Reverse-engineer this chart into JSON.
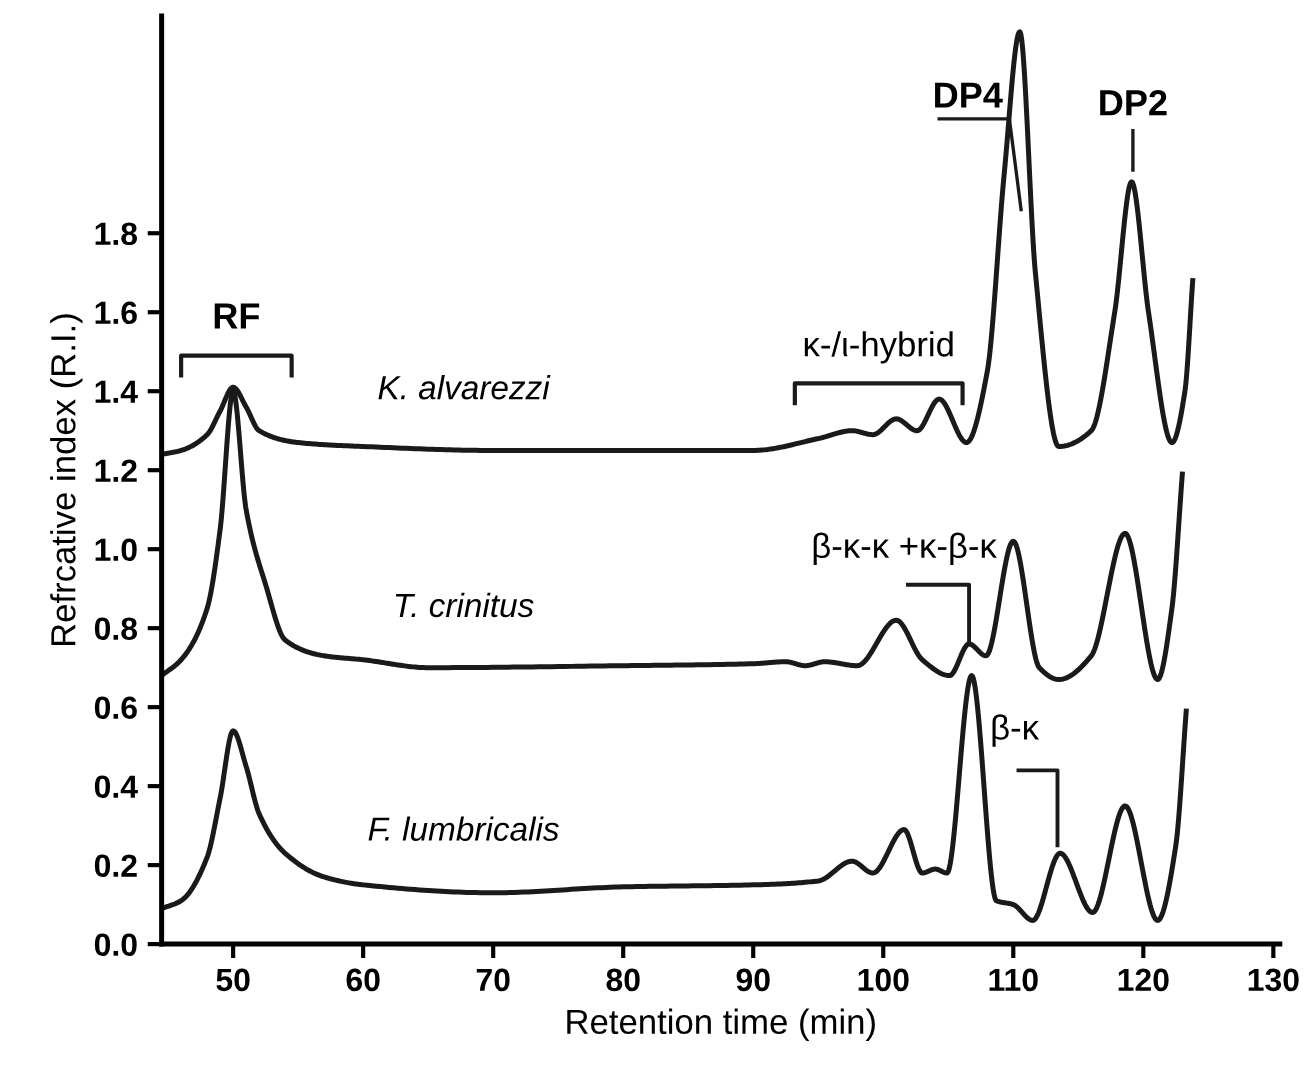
{
  "chart_data": {
    "type": "line",
    "xlabel": "Retention time (min)",
    "ylabel": "Refrcative index (R.I.)",
    "xlim": [
      44.5,
      130.5
    ],
    "ylim": [
      0,
      2.35
    ],
    "xticks": [
      50,
      60,
      70,
      80,
      90,
      100,
      110,
      120,
      130
    ],
    "yticks": [
      {
        "value": 0,
        "label": "0.0"
      },
      0.2,
      0.4,
      0.6,
      0.8,
      {
        "value": 1,
        "label": "1.0"
      },
      1.2,
      1.4,
      1.6,
      1.8
    ],
    "grid": false,
    "legend": false,
    "marker": "none",
    "line_style": "solid",
    "series": [
      {
        "name": "K. alvarezzi",
        "color": "#1a1a1a",
        "x": [
          44.5,
          46,
          48,
          49,
          50,
          51,
          52,
          55,
          60,
          70,
          80,
          90,
          95,
          97.6,
          99.2,
          101,
          102.6,
          104.3,
          106.4,
          108,
          109.3,
          110.5,
          111.7,
          113.5,
          116,
          117.8,
          119.1,
          120.4,
          122.2,
          123.2,
          123.8
        ],
        "values": [
          1.24,
          1.25,
          1.29,
          1.35,
          1.41,
          1.36,
          1.3,
          1.27,
          1.26,
          1.25,
          1.25,
          1.25,
          1.28,
          1.3,
          1.29,
          1.33,
          1.3,
          1.38,
          1.27,
          1.45,
          1.95,
          2.31,
          1.7,
          1.26,
          1.3,
          1.6,
          1.93,
          1.6,
          1.27,
          1.4,
          1.68
        ]
      },
      {
        "name": "T. crinitus",
        "color": "#1a1a1a",
        "x": [
          44.5,
          46,
          48,
          49,
          50,
          51,
          52.5,
          54,
          57,
          60,
          65,
          80,
          90,
          92.5,
          94,
          95.5,
          98,
          101,
          103,
          105.1,
          106.6,
          107.9,
          110,
          112,
          113.5,
          116,
          118.6,
          121.1,
          122.2,
          123
        ],
        "values": [
          0.68,
          0.72,
          0.85,
          1.05,
          1.4,
          1.1,
          0.91,
          0.77,
          0.73,
          0.72,
          0.7,
          0.705,
          0.71,
          0.715,
          0.705,
          0.715,
          0.705,
          0.82,
          0.72,
          0.68,
          0.76,
          0.73,
          1.02,
          0.7,
          0.67,
          0.73,
          1.04,
          0.67,
          0.85,
          1.19
        ]
      },
      {
        "name": "F. lumbricalis",
        "color": "#1a1a1a",
        "x": [
          44.5,
          46,
          48,
          49,
          50,
          51,
          52,
          54,
          57,
          60,
          70,
          80,
          90,
          95,
          97.6,
          99.2,
          101.6,
          103,
          104,
          104.9,
          106.8,
          108.7,
          110,
          111.5,
          113.6,
          116.1,
          118.6,
          121.1,
          122.5,
          123.3
        ],
        "values": [
          0.09,
          0.11,
          0.22,
          0.37,
          0.54,
          0.45,
          0.33,
          0.23,
          0.17,
          0.15,
          0.13,
          0.145,
          0.15,
          0.16,
          0.21,
          0.18,
          0.29,
          0.18,
          0.19,
          0.18,
          0.68,
          0.11,
          0.1,
          0.06,
          0.23,
          0.08,
          0.35,
          0.06,
          0.25,
          0.59
        ]
      }
    ],
    "annotations": [
      {
        "text": "RF",
        "x": 50,
        "y": 1.41
      },
      {
        "text": "κ-/ι-hybrid",
        "x": 104.3,
        "y": 1.38
      },
      {
        "text": "DP4",
        "x": 110.6,
        "y": 1.86
      },
      {
        "text": "DP2",
        "x": 119.2,
        "y": 1.96
      },
      {
        "text": "β-κ-κ +κ-β-κ",
        "x": 106.6,
        "y": 0.76
      },
      {
        "text": "β-κ",
        "x": 113.4,
        "y": 0.25
      }
    ]
  }
}
